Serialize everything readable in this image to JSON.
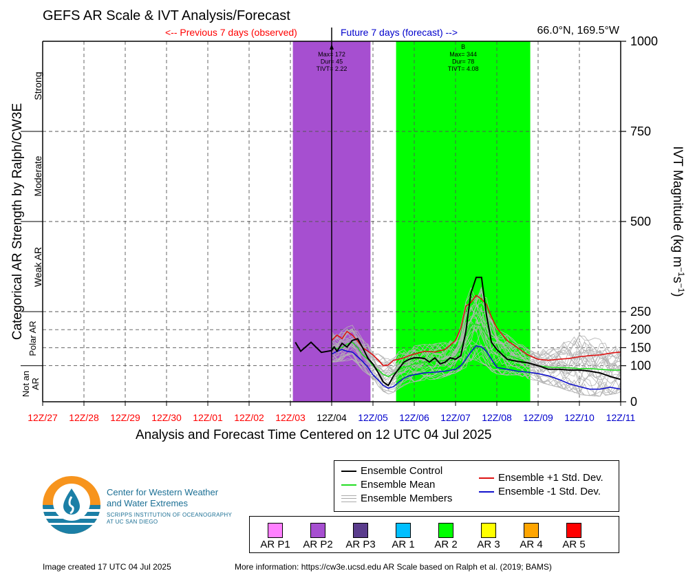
{
  "header": {
    "title": "GEFS AR Scale & IVT Analysis/Forecast",
    "prev_label": "<-- Previous 7 days (observed)",
    "future_label": "Future 7 days (forecast) -->",
    "location": "66.0°N, 169.5°W"
  },
  "axes": {
    "xlabel": "Analysis and Forecast Time Centered on 12 UTC 04 Jul 2025",
    "ylabel_left": "Categorical AR Strength by Ralph/CW3E",
    "ylabel_right": "IVT Magnitude (kg m",
    "ylabel_right_sup1": "−1",
    "ylabel_right_mid": "s",
    "ylabel_right_sup2": "−1",
    "ylabel_right_end": ")",
    "categories": [
      {
        "label": "Strong",
        "from": 750,
        "to": 1000
      },
      {
        "label": "Moderate",
        "from": 500,
        "to": 750
      },
      {
        "label": "Weak AR",
        "from": 250,
        "to": 500
      },
      {
        "label": "Polar AR",
        "from": 100,
        "to": 250
      },
      {
        "label": "Not an AR",
        "from": 0,
        "to": 100
      }
    ]
  },
  "colors": {
    "control": "#000000",
    "mean": "#22dd22",
    "plus1": "#dd1111",
    "minus1": "#1111cc",
    "members": "#b4b4b4",
    "observed_label": "#ff0000",
    "forecast_label": "#0000cc",
    "ar_p2": "#a64fd0",
    "ar_2": "#00ff00"
  },
  "chart_data": {
    "type": "line",
    "title": "GEFS AR Scale & IVT Analysis/Forecast",
    "xlabel": "Analysis and Forecast Time Centered on 12 UTC 04 Jul 2025",
    "ylabel": "IVT Magnitude (kg m-1 s-1)",
    "x_unit": "days relative to 12Z/04 Jul 2025",
    "xlim": [
      -7,
      7
    ],
    "ylim": [
      0,
      1000
    ],
    "y_ticks": [
      0,
      100,
      150,
      200,
      250,
      500,
      750,
      1000
    ],
    "x_ticks": [
      {
        "label": "12Z/27",
        "x": -7,
        "kind": "observed"
      },
      {
        "label": "12Z/28",
        "x": -6,
        "kind": "observed"
      },
      {
        "label": "12Z/29",
        "x": -5,
        "kind": "observed"
      },
      {
        "label": "12Z/30",
        "x": -4,
        "kind": "observed"
      },
      {
        "label": "12Z/01",
        "x": -3,
        "kind": "observed"
      },
      {
        "label": "12Z/02",
        "x": -2,
        "kind": "observed"
      },
      {
        "label": "12Z/03",
        "x": -1,
        "kind": "observed"
      },
      {
        "label": "12Z/04",
        "x": 0,
        "kind": "now"
      },
      {
        "label": "12Z/05",
        "x": 1,
        "kind": "forecast"
      },
      {
        "label": "12Z/06",
        "x": 2,
        "kind": "forecast"
      },
      {
        "label": "12Z/07",
        "x": 3,
        "kind": "forecast"
      },
      {
        "label": "12Z/08",
        "x": 4,
        "kind": "forecast"
      },
      {
        "label": "12Z/09",
        "x": 5,
        "kind": "forecast"
      },
      {
        "label": "12Z/10",
        "x": 6,
        "kind": "forecast"
      },
      {
        "label": "12Z/11",
        "x": 7,
        "kind": "forecast"
      }
    ],
    "ar_events": [
      {
        "category": "AR P2",
        "x_start": -0.94,
        "x_end": 0.94,
        "label_top": "",
        "max_label": "Max= 172",
        "dur_label": "Dur= 45",
        "tivt_label": "TIVT= 2.22"
      },
      {
        "category": "AR 2",
        "x_start": 1.56,
        "x_end": 4.81,
        "label_top": "B",
        "max_label": "Max= 344",
        "dur_label": "Dur= 78",
        "tivt_label": "TIVT= 4.08"
      }
    ],
    "series": [
      {
        "name": "Ensemble Control",
        "x": [
          -0.88,
          -0.75,
          -0.5,
          -0.25,
          0,
          0.06,
          0.13,
          0.25,
          0.37,
          0.5,
          0.63,
          0.75,
          0.88,
          1,
          1.13,
          1.25,
          1.37,
          1.5,
          1.63,
          1.75,
          1.88,
          2,
          2.13,
          2.25,
          2.37,
          2.5,
          2.63,
          2.75,
          2.87,
          3,
          3.13,
          3.25,
          3.37,
          3.5,
          3.63,
          3.75,
          3.87,
          4,
          4.25,
          4.5,
          4.75,
          5,
          5.25,
          5.5,
          5.75,
          6,
          6.25,
          6.5,
          6.75,
          7
        ],
        "values": [
          165,
          140,
          165,
          137,
          142,
          152,
          140,
          162,
          152,
          170,
          175,
          150,
          120,
          105,
          80,
          55,
          45,
          72,
          92,
          110,
          118,
          122,
          122,
          120,
          110,
          122,
          105,
          110,
          122,
          118,
          128,
          195,
          300,
          345,
          345,
          240,
          165,
          145,
          118,
          112,
          108,
          100,
          90,
          90,
          88,
          88,
          85,
          80,
          70,
          62
        ]
      },
      {
        "name": "Ensemble Mean",
        "x": [
          0,
          0.13,
          0.25,
          0.37,
          0.5,
          0.63,
          0.75,
          0.88,
          1,
          1.13,
          1.25,
          1.37,
          1.5,
          1.63,
          1.75,
          1.88,
          2,
          2.25,
          2.5,
          2.75,
          3,
          3.13,
          3.25,
          3.37,
          3.5,
          3.63,
          3.75,
          3.87,
          4,
          4.25,
          4.5,
          4.75,
          5,
          5.25,
          5.5,
          5.75,
          6,
          6.25,
          6.5,
          6.75,
          7
        ],
        "values": [
          150,
          148,
          150,
          160,
          165,
          150,
          130,
          118,
          100,
          88,
          76,
          70,
          78,
          88,
          95,
          100,
          105,
          110,
          112,
          115,
          125,
          150,
          185,
          215,
          215,
          210,
          185,
          165,
          145,
          130,
          120,
          108,
          100,
          96,
          95,
          94,
          92,
          92,
          90,
          88,
          88
        ]
      },
      {
        "name": "Ensemble +1 Std. Dev.",
        "x": [
          0,
          0.13,
          0.25,
          0.37,
          0.5,
          0.63,
          0.75,
          0.88,
          1,
          1.13,
          1.25,
          1.37,
          1.5,
          1.63,
          1.75,
          1.88,
          2,
          2.25,
          2.5,
          2.75,
          3,
          3.13,
          3.25,
          3.37,
          3.5,
          3.63,
          3.75,
          3.87,
          4,
          4.25,
          4.5,
          4.75,
          5,
          5.25,
          5.5,
          5.75,
          6,
          6.25,
          6.5,
          6.75,
          7
        ],
        "values": [
          170,
          185,
          175,
          195,
          185,
          168,
          150,
          140,
          130,
          115,
          100,
          102,
          115,
          118,
          122,
          128,
          132,
          140,
          138,
          145,
          170,
          205,
          265,
          275,
          295,
          285,
          270,
          235,
          205,
          170,
          150,
          130,
          118,
          115,
          118,
          120,
          125,
          128,
          130,
          135,
          138
        ]
      },
      {
        "name": "Ensemble -1 Std. Dev.",
        "x": [
          0,
          0.13,
          0.25,
          0.37,
          0.5,
          0.63,
          0.75,
          0.88,
          1,
          1.13,
          1.25,
          1.37,
          1.5,
          1.63,
          1.75,
          1.88,
          2,
          2.25,
          2.5,
          2.75,
          3,
          3.13,
          3.25,
          3.37,
          3.5,
          3.63,
          3.75,
          3.87,
          4,
          4.25,
          4.5,
          4.75,
          5,
          5.25,
          5.5,
          5.75,
          6,
          6.25,
          6.5,
          6.75,
          7
        ],
        "values": [
          132,
          140,
          145,
          140,
          138,
          125,
          112,
          95,
          75,
          60,
          45,
          38,
          42,
          55,
          65,
          72,
          75,
          80,
          82,
          85,
          90,
          100,
          118,
          138,
          155,
          152,
          140,
          118,
          95,
          90,
          85,
          82,
          78,
          72,
          62,
          50,
          42,
          35,
          35,
          40,
          35
        ]
      }
    ],
    "members_band": {
      "x": [
        0,
        0.5,
        1,
        1.25,
        1.5,
        2,
        2.5,
        3,
        3.25,
        3.5,
        3.75,
        4,
        4.5,
        5,
        5.5,
        6,
        6.5,
        7
      ],
      "upper": [
        210,
        220,
        150,
        125,
        140,
        160,
        170,
        190,
        300,
        360,
        330,
        220,
        160,
        150,
        180,
        230,
        200,
        160
      ],
      "lower": [
        110,
        115,
        60,
        18,
        25,
        50,
        60,
        80,
        95,
        115,
        100,
        70,
        60,
        55,
        40,
        20,
        15,
        25
      ]
    }
  },
  "legend": {
    "items": [
      {
        "label": "Ensemble Control",
        "color": "#000000"
      },
      {
        "label": "Ensemble Mean",
        "color": "#22dd22"
      },
      {
        "label": "Ensemble Members",
        "color": "#b4b4b4"
      },
      {
        "label": "Ensemble +1 Std. Dev.",
        "color": "#dd1111"
      },
      {
        "label": "Ensemble -1 Std. Dev.",
        "color": "#1111cc"
      }
    ]
  },
  "ar_scale_legend": [
    {
      "label": "AR P1",
      "color": "#ff80ff"
    },
    {
      "label": "AR P2",
      "color": "#a64fd0"
    },
    {
      "label": "AR P3",
      "color": "#5a3c8c"
    },
    {
      "label": "AR 1",
      "color": "#00bfff"
    },
    {
      "label": "AR 2",
      "color": "#00ff00"
    },
    {
      "label": "AR 3",
      "color": "#ffff00"
    },
    {
      "label": "AR 4",
      "color": "#ffa500"
    },
    {
      "label": "AR 5",
      "color": "#ff0000"
    }
  ],
  "logo": {
    "line1": "Center for Western Weather",
    "line2": "and Water Extremes",
    "line3": "SCRIPPS INSTITUTION OF OCEANOGRAPHY",
    "line4": "AT UC SAN DIEGO"
  },
  "footer": {
    "created": "Image created 17 UTC 04 Jul 2025",
    "info": "More information: https://cw3e.ucsd.edu AR Scale based on Ralph et al. (2019; BAMS)"
  }
}
